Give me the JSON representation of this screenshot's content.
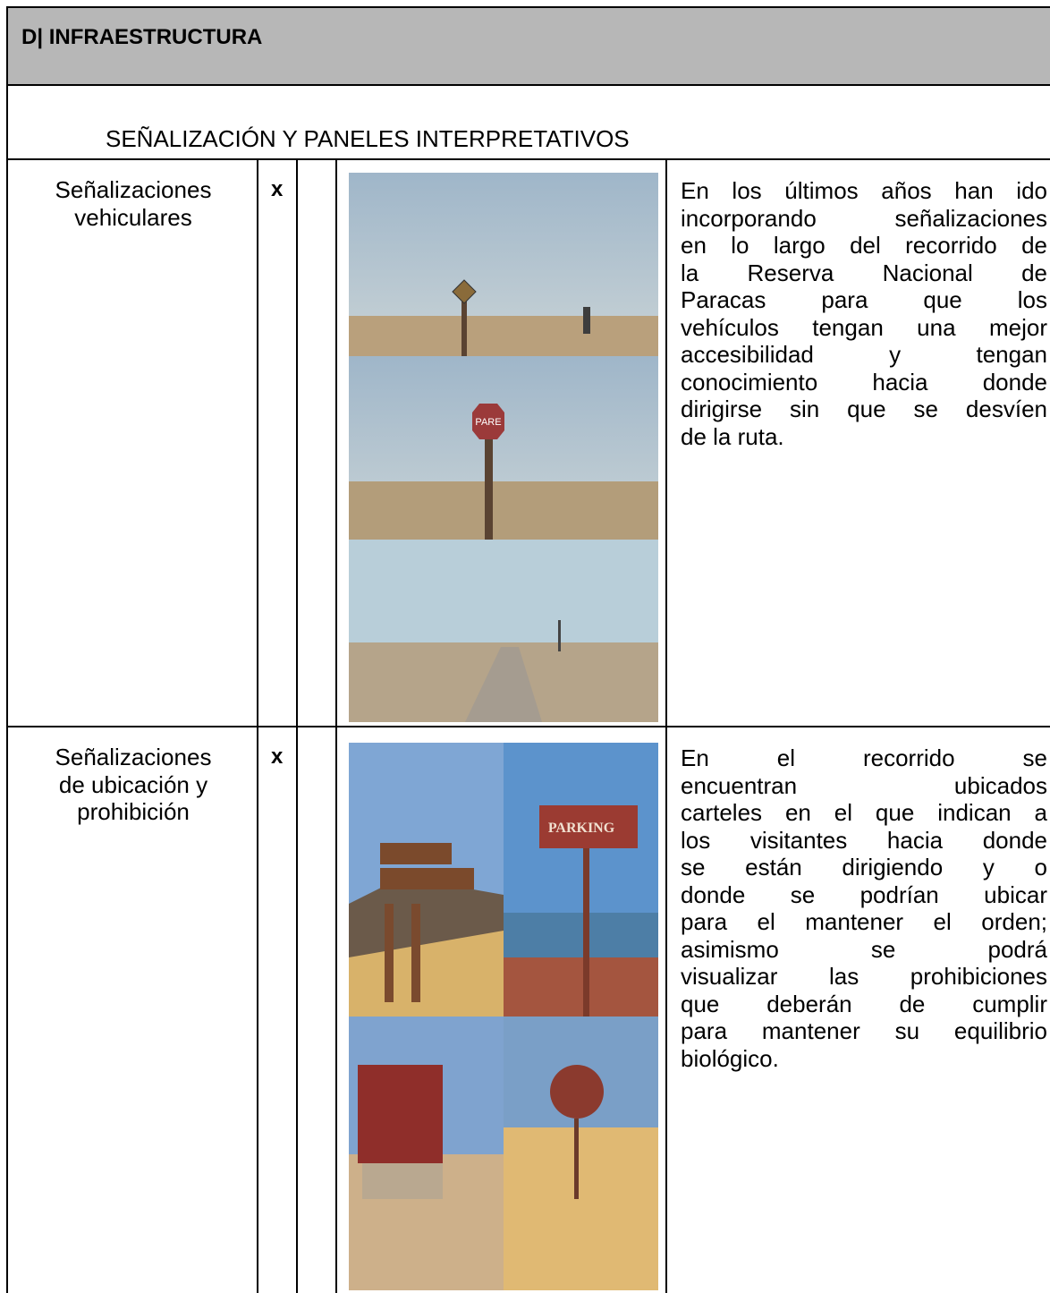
{
  "header": {
    "title": "D| INFRAESTRUCTURA"
  },
  "section": {
    "title": "SEÑALIZACIÓN Y PANELES INTERPRETATIVOS"
  },
  "rows": [
    {
      "label": [
        "Señalizaciones",
        "vehiculares"
      ],
      "mark": "x",
      "photo_texts": [
        "PARE"
      ],
      "description": [
        "En los últimos años han ido",
        "incorporando señalizaciones",
        "en lo largo del recorrido de",
        "la Reserva Nacional de",
        "Paracas para que los",
        "vehículos tengan una mejor",
        "accesibilidad y tengan",
        "conocimiento hacia donde",
        "dirigirse sin que se desvíen",
        "de la ruta."
      ]
    },
    {
      "label": [
        "Señalizaciones",
        "de ubicación y",
        "prohibición"
      ],
      "mark": "x",
      "photo_texts": [
        "PARKING"
      ],
      "description": [
        "En el recorrido se",
        "encuentran ubicados",
        "carteles en el que indican a",
        "los visitantes hacia donde",
        "se están dirigiendo y o",
        "donde se podrían ubicar",
        "para el mantener el orden;",
        "asimismo se podrá",
        "visualizar las prohibiciones",
        "que deberán de cumplir",
        "para mantener su equilibrio",
        "biológico."
      ]
    }
  ]
}
